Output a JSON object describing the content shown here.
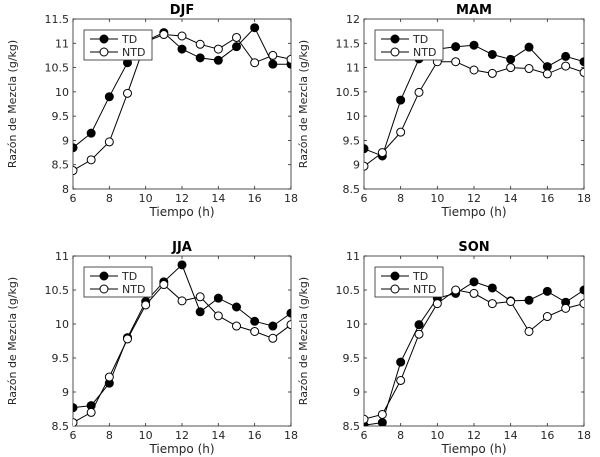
{
  "chart_data": [
    {
      "type": "line",
      "title": "DJF",
      "xlabel": "Tiempo (h)",
      "ylabel": "Razón de Mezcla (g/kg)",
      "xlim": [
        6,
        18
      ],
      "ylim": [
        8,
        11.5
      ],
      "xticks": [
        "6",
        "8",
        "10",
        "12",
        "14",
        "16",
        "18"
      ],
      "yticks": [
        "8",
        "8.5",
        "9",
        "9.5",
        "10",
        "10.5",
        "11",
        "11.5"
      ],
      "x": [
        6,
        7,
        8,
        9,
        10,
        11,
        12,
        13,
        14,
        15,
        16,
        17,
        18
      ],
      "legend_position": "top-left",
      "series": [
        {
          "name": "TD",
          "marker": "filled-circle",
          "values": [
            8.85,
            9.15,
            9.9,
            10.6,
            11.05,
            11.22,
            10.88,
            10.7,
            10.65,
            10.93,
            11.32,
            10.57,
            10.57
          ]
        },
        {
          "name": "NTD",
          "marker": "open-circle",
          "values": [
            8.38,
            8.6,
            8.97,
            9.97,
            11.03,
            11.18,
            11.15,
            10.98,
            10.88,
            11.12,
            10.6,
            10.75,
            10.67
          ]
        }
      ]
    },
    {
      "type": "line",
      "title": "MAM",
      "xlabel": "Tiempo (h)",
      "ylabel": "Razón de Mezcla (g/kg)",
      "xlim": [
        6,
        18
      ],
      "ylim": [
        8.5,
        12
      ],
      "xticks": [
        "6",
        "8",
        "10",
        "12",
        "14",
        "16",
        "18"
      ],
      "yticks": [
        "8.5",
        "9",
        "9.5",
        "10",
        "10.5",
        "11",
        "11.5",
        "12"
      ],
      "x": [
        6,
        7,
        8,
        9,
        10,
        11,
        12,
        13,
        14,
        15,
        16,
        17,
        18
      ],
      "legend_position": "top-left",
      "series": [
        {
          "name": "TD",
          "marker": "filled-circle",
          "values": [
            9.33,
            9.18,
            10.33,
            11.18,
            11.38,
            11.43,
            11.46,
            11.27,
            11.17,
            11.42,
            11.02,
            11.23,
            11.12
          ]
        },
        {
          "name": "NTD",
          "marker": "open-circle",
          "values": [
            8.97,
            9.25,
            9.67,
            10.49,
            11.12,
            11.12,
            10.95,
            10.88,
            11.0,
            10.98,
            10.87,
            11.03,
            10.9
          ]
        }
      ]
    },
    {
      "type": "line",
      "title": "JJA",
      "xlabel": "Tiempo (h)",
      "ylabel": "Razón de Mezcla (g/kg)",
      "xlim": [
        6,
        18
      ],
      "ylim": [
        8.5,
        11
      ],
      "xticks": [
        "6",
        "8",
        "10",
        "12",
        "14",
        "16",
        "18"
      ],
      "yticks": [
        "8.5",
        "9",
        "9.5",
        "10",
        "10.5",
        "11"
      ],
      "x": [
        6,
        7,
        8,
        9,
        10,
        11,
        12,
        13,
        14,
        15,
        16,
        17,
        18
      ],
      "legend_position": "top-left",
      "series": [
        {
          "name": "TD",
          "marker": "filled-circle",
          "values": [
            8.77,
            8.8,
            9.13,
            9.8,
            10.33,
            10.62,
            10.87,
            10.18,
            10.38,
            10.25,
            10.04,
            9.97,
            10.16
          ]
        },
        {
          "name": "NTD",
          "marker": "open-circle",
          "values": [
            8.55,
            8.7,
            9.22,
            9.78,
            10.28,
            10.58,
            10.34,
            10.4,
            10.12,
            9.97,
            9.89,
            9.79,
            9.99
          ]
        }
      ]
    },
    {
      "type": "line",
      "title": "SON",
      "xlabel": "Tiempo (h)",
      "ylabel": "Razón de Mezcla (g/kg)",
      "xlim": [
        6,
        18
      ],
      "ylim": [
        8.5,
        11
      ],
      "xticks": [
        "6",
        "8",
        "10",
        "12",
        "14",
        "16",
        "18"
      ],
      "yticks": [
        "8.5",
        "9",
        "9.5",
        "10",
        "10.5",
        "11"
      ],
      "x": [
        6,
        7,
        8,
        9,
        10,
        11,
        12,
        13,
        14,
        15,
        16,
        17,
        18
      ],
      "legend_position": "top-left",
      "series": [
        {
          "name": "TD",
          "marker": "filled-circle",
          "values": [
            8.51,
            8.55,
            9.44,
            9.99,
            10.38,
            10.45,
            10.62,
            10.53,
            10.34,
            10.35,
            10.48,
            10.32,
            10.5
          ]
        },
        {
          "name": "NTD",
          "marker": "open-circle",
          "values": [
            8.6,
            8.67,
            9.17,
            9.85,
            10.3,
            10.5,
            10.45,
            10.3,
            10.33,
            9.89,
            10.11,
            10.23,
            10.3
          ]
        }
      ]
    }
  ]
}
